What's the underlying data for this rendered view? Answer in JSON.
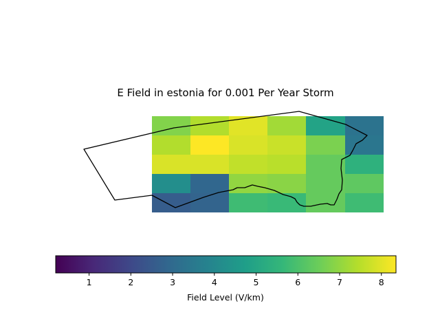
{
  "chart_data": {
    "type": "heatmap",
    "title": "E Field in estonia for 0.001 Per Year Storm",
    "grid": false,
    "colormap": "viridis",
    "colorbar": {
      "label": "Field Level (V/km)",
      "range": [
        0.2,
        8.35
      ],
      "ticks": [
        1,
        2,
        3,
        4,
        5,
        6,
        7,
        8
      ],
      "tick_labels": [
        "1",
        "2",
        "3",
        "4",
        "5",
        "6",
        "7",
        "8"
      ],
      "orientation": "horizontal",
      "position": "bottom"
    },
    "grid_rows": 5,
    "grid_cols": 6,
    "values": [
      [
        6.8,
        7.4,
        8.0,
        7.2,
        4.9,
        3.3
      ],
      [
        7.4,
        8.35,
        7.9,
        7.7,
        6.7,
        3.4
      ],
      [
        7.9,
        7.9,
        7.6,
        7.5,
        6.4,
        5.4
      ],
      [
        4.2,
        2.9,
        7.0,
        6.9,
        6.4,
        6.3
      ],
      [
        2.6,
        2.8,
        5.8,
        5.7,
        6.4,
        5.8
      ]
    ]
  }
}
